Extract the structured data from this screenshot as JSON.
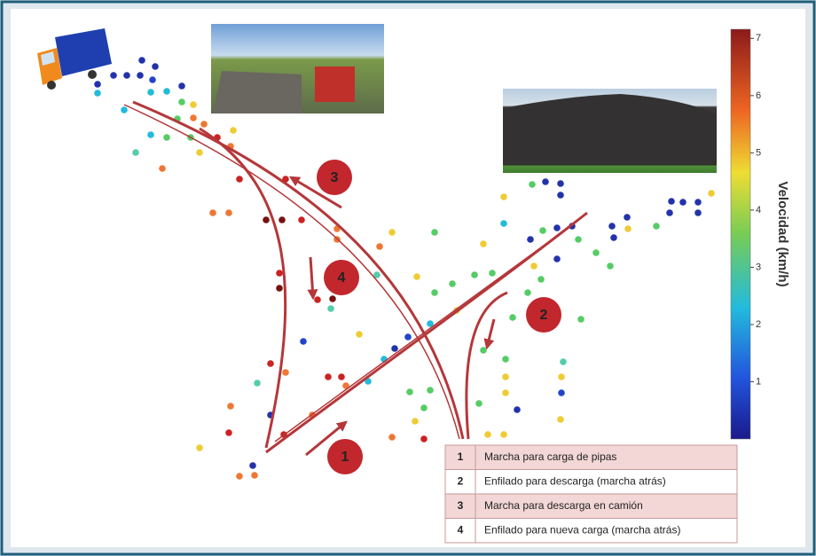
{
  "colorbar": {
    "label": "Velocidad (km/h)",
    "ticks": [
      1,
      2,
      3,
      4,
      5,
      6,
      7
    ],
    "range": [
      0,
      7.16
    ]
  },
  "markers": [
    1,
    2,
    3,
    4
  ],
  "legend": {
    "rows": [
      [
        1,
        "Marcha para carga de pipas"
      ],
      [
        2,
        "Enfilado para descarga (marcha atrás)"
      ],
      [
        3,
        "Marcha para descarga en camión"
      ],
      [
        4,
        "Enfilado para nueva carga (marcha atrás)"
      ]
    ]
  }
}
